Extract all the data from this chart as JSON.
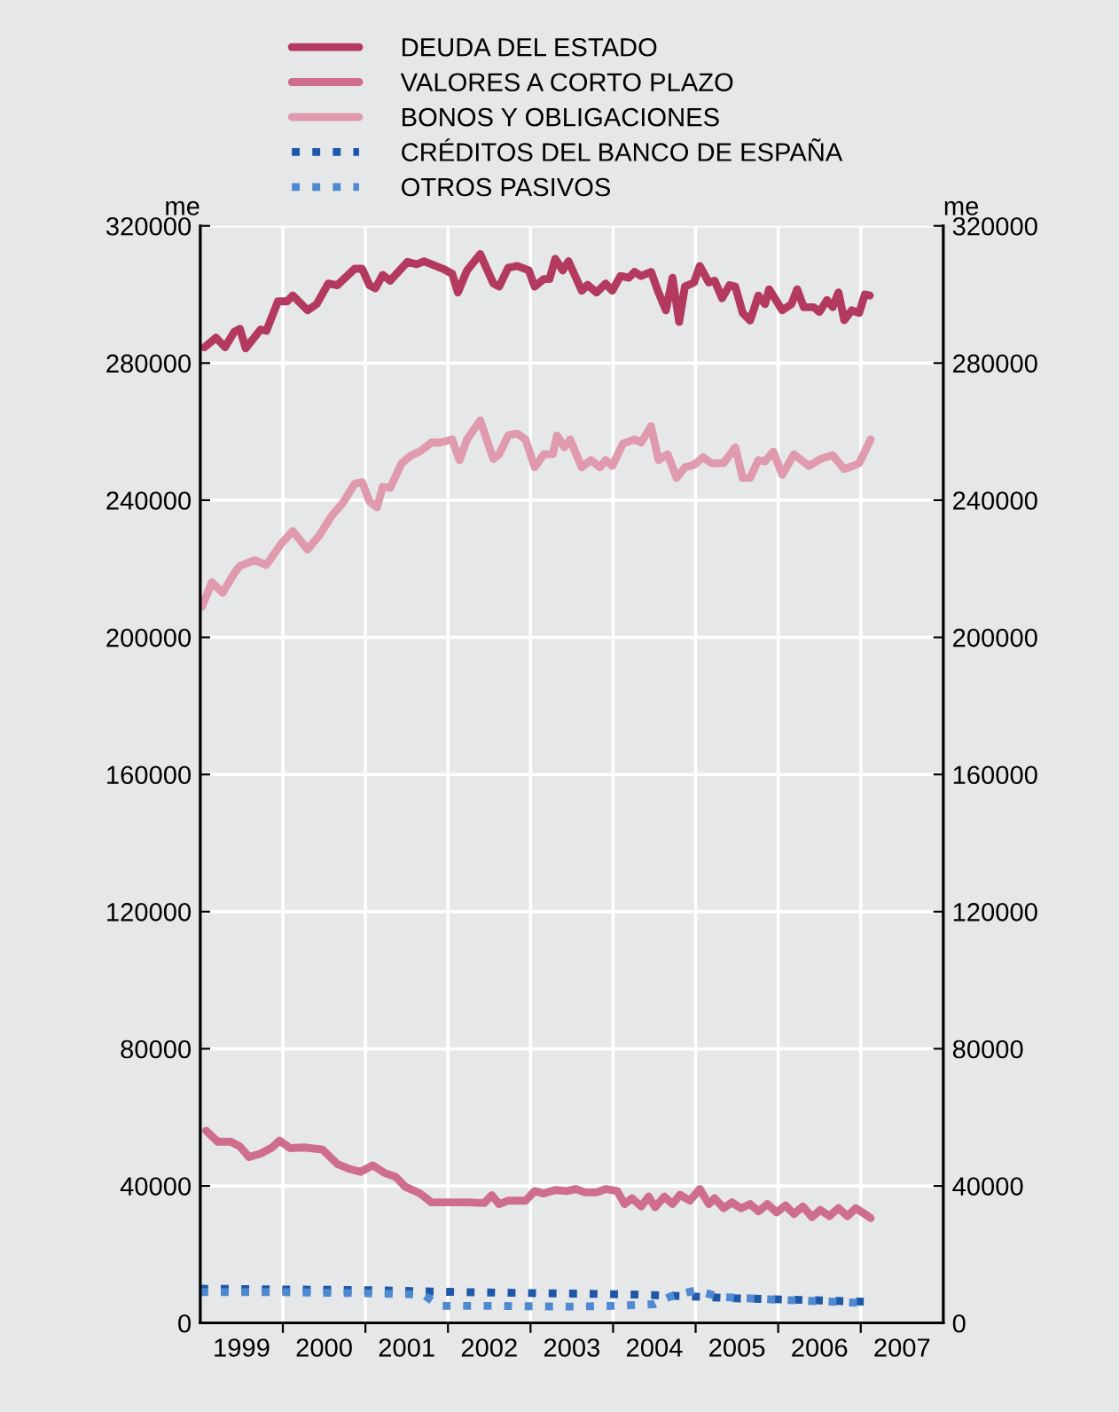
{
  "chart_data": {
    "type": "line",
    "ylabel": "me",
    "y2label": "me",
    "xlim": [
      1999,
      2008
    ],
    "xticks": [
      {
        "value": 1999.5,
        "label": "1999"
      },
      {
        "value": 2000,
        "label": null
      },
      {
        "value": 2000.5,
        "label": "2000"
      },
      {
        "value": 2001,
        "label": null
      },
      {
        "value": 2001.5,
        "label": "2001"
      },
      {
        "value": 2002,
        "label": null
      },
      {
        "value": 2002.5,
        "label": "2002"
      },
      {
        "value": 2003,
        "label": null
      },
      {
        "value": 2003.5,
        "label": "2003"
      },
      {
        "value": 2004,
        "label": null
      },
      {
        "value": 2004.5,
        "label": "2004"
      },
      {
        "value": 2005,
        "label": null
      },
      {
        "value": 2005.5,
        "label": "2005"
      },
      {
        "value": 2006,
        "label": null
      },
      {
        "value": 2006.5,
        "label": "2006"
      },
      {
        "value": 2007,
        "label": null
      },
      {
        "value": 2007.5,
        "label": "2007"
      }
    ],
    "ylim": [
      0,
      320000
    ],
    "yticks": [
      0,
      40000,
      80000,
      120000,
      160000,
      200000,
      240000,
      280000,
      320000
    ],
    "y2lim": [
      0,
      320000
    ],
    "y2ticks": [
      0,
      40000,
      80000,
      120000,
      160000,
      200000,
      240000,
      280000,
      320000
    ],
    "grid": true,
    "legend": "top",
    "series": [
      {
        "name": "DEUDA DEL ESTADO",
        "color": "#b33a5e",
        "line_style": "solid",
        "x": [
          1999.05,
          1999.19,
          1999.3,
          1999.41,
          1999.48,
          1999.55,
          1999.73,
          1999.8,
          1999.94,
          2000.05,
          2000.12,
          2000.3,
          2000.41,
          2000.55,
          2000.66,
          2000.87,
          2000.96,
          2001.05,
          2001.12,
          2001.21,
          2001.3,
          2001.51,
          2001.62,
          2001.71,
          2001.94,
          2002.05,
          2002.12,
          2002.23,
          2002.39,
          2002.55,
          2002.62,
          2002.73,
          2002.84,
          2002.98,
          2003.05,
          2003.16,
          2003.23,
          2003.3,
          2003.39,
          2003.46,
          2003.62,
          2003.69,
          2003.8,
          2003.91,
          2003.99,
          2004.09,
          2004.19,
          2004.26,
          2004.34,
          2004.46,
          2004.55,
          2004.64,
          2004.72,
          2004.8,
          2004.87,
          2004.98,
          2005.05,
          2005.16,
          2005.23,
          2005.32,
          2005.41,
          2005.48,
          2005.57,
          2005.66,
          2005.76,
          2005.84,
          2005.89,
          2006.05,
          2006.16,
          2006.23,
          2006.31,
          2006.43,
          2006.5,
          2006.59,
          2006.66,
          2006.73,
          2006.8,
          2006.89,
          2006.98,
          2007.05,
          2007.11
        ],
        "values": [
          284600,
          287400,
          284600,
          289100,
          290000,
          284300,
          289800,
          289400,
          298000,
          298000,
          299700,
          295400,
          297200,
          303200,
          302700,
          307500,
          307500,
          302700,
          301800,
          305700,
          304000,
          309500,
          308800,
          309700,
          307500,
          306100,
          300600,
          307000,
          311800,
          303200,
          302300,
          307800,
          308300,
          307000,
          302300,
          304500,
          304500,
          310400,
          307000,
          309700,
          301100,
          302800,
          300600,
          303200,
          301100,
          305400,
          304900,
          306600,
          305400,
          306600,
          300600,
          295400,
          304900,
          292000,
          302300,
          303500,
          308300,
          303500,
          304000,
          298900,
          302700,
          302300,
          294600,
          292400,
          299700,
          297200,
          301500,
          295400,
          297200,
          301500,
          296300,
          296300,
          294900,
          298400,
          296300,
          300600,
          292500,
          295400,
          294600,
          300000,
          299700
        ]
      },
      {
        "name": "VALORES A CORTO PLAZO",
        "color": "#cf6d8c",
        "line_style": "solid",
        "x": [
          1999.07,
          1999.21,
          1999.37,
          1999.48,
          1999.59,
          1999.73,
          1999.87,
          1999.96,
          2000.09,
          2000.26,
          2000.48,
          2000.66,
          2000.8,
          2000.94,
          2001.09,
          2001.23,
          2001.37,
          2001.48,
          2001.66,
          2001.8,
          2002.01,
          2002.23,
          2002.44,
          2002.53,
          2002.62,
          2002.73,
          2002.94,
          2003.05,
          2003.16,
          2003.3,
          2003.44,
          2003.55,
          2003.66,
          2003.8,
          2003.91,
          2004.05,
          2004.14,
          2004.23,
          2004.34,
          2004.43,
          2004.51,
          2004.62,
          2004.72,
          2004.81,
          2004.93,
          2005.05,
          2005.16,
          2005.23,
          2005.34,
          2005.44,
          2005.55,
          2005.66,
          2005.76,
          2005.87,
          2005.98,
          2006.09,
          2006.19,
          2006.3,
          2006.41,
          2006.51,
          2006.62,
          2006.73,
          2006.84,
          2006.94,
          2007.05,
          2007.12
        ],
        "values": [
          56100,
          52900,
          52900,
          51500,
          48400,
          49400,
          51200,
          53200,
          51000,
          51200,
          50600,
          46400,
          45000,
          44100,
          46000,
          43800,
          42600,
          39800,
          37800,
          35200,
          35200,
          35200,
          35000,
          37300,
          34700,
          35700,
          35700,
          38500,
          37800,
          38800,
          38500,
          39100,
          38100,
          38100,
          39100,
          38500,
          34700,
          36400,
          34000,
          36900,
          33800,
          36900,
          34700,
          37400,
          35700,
          39100,
          34700,
          36400,
          33500,
          35200,
          33500,
          34700,
          32600,
          34700,
          32300,
          34300,
          31800,
          34000,
          30900,
          33000,
          31200,
          33500,
          31200,
          33500,
          31800,
          30600
        ]
      },
      {
        "name": "BONOS Y OBLIGACIONES",
        "color": "#e09aae",
        "line_style": "solid",
        "x": [
          1999.02,
          1999.14,
          1999.27,
          1999.42,
          1999.48,
          1999.66,
          1999.8,
          1999.98,
          2000.12,
          2000.3,
          2000.44,
          2000.59,
          2000.73,
          2000.87,
          2000.96,
          2001.05,
          2001.14,
          2001.21,
          2001.3,
          2001.44,
          2001.55,
          2001.66,
          2001.8,
          2001.91,
          2002.05,
          2002.14,
          2002.23,
          2002.39,
          2002.55,
          2002.62,
          2002.73,
          2002.84,
          2002.94,
          2003.05,
          2003.16,
          2003.27,
          2003.32,
          2003.41,
          2003.48,
          2003.62,
          2003.73,
          2003.84,
          2003.91,
          2003.99,
          2004.12,
          2004.26,
          2004.34,
          2004.46,
          2004.55,
          2004.66,
          2004.77,
          2004.87,
          2004.98,
          2005.09,
          2005.19,
          2005.34,
          2005.48,
          2005.57,
          2005.66,
          2005.76,
          2005.84,
          2005.94,
          2006.05,
          2006.19,
          2006.37,
          2006.51,
          2006.66,
          2006.8,
          2006.91,
          2006.98,
          2007.12
        ],
        "values": [
          208900,
          216100,
          213000,
          219000,
          220800,
          222500,
          221100,
          227300,
          231000,
          225600,
          229700,
          235400,
          239300,
          244800,
          245300,
          239600,
          237900,
          243900,
          243600,
          250800,
          253000,
          254200,
          256800,
          256800,
          257700,
          251700,
          257700,
          263300,
          252000,
          253400,
          258900,
          259400,
          257700,
          249600,
          253400,
          253400,
          258900,
          255400,
          257700,
          249600,
          251700,
          249600,
          251700,
          250000,
          256500,
          257700,
          256800,
          261600,
          251700,
          253400,
          246500,
          249600,
          250300,
          252500,
          250800,
          250800,
          255400,
          246500,
          246500,
          251700,
          251300,
          254200,
          247400,
          253400,
          250000,
          252000,
          253100,
          249100,
          250000,
          250800,
          257700
        ]
      },
      {
        "name": "CRÉDITOS DEL BANCO DE ESPAÑA",
        "color": "#1f57a8",
        "line_style": "dotted",
        "x": [
          1999.0,
          2000.0,
          2001.0,
          2001.8,
          2002.5,
          2003.5,
          2004.3,
          2004.9,
          2005.5,
          2006.2,
          2007.1
        ],
        "values": [
          10000,
          9800,
          9600,
          9200,
          8900,
          8600,
          8300,
          7800,
          7200,
          6800,
          6200
        ]
      },
      {
        "name": "OTROS PASIVOS",
        "color": "#4f8ad0",
        "line_style": "dotted",
        "x": [
          1999.0,
          2000.0,
          2001.0,
          2001.7,
          2001.9,
          2002.5,
          2003.5,
          2004.0,
          2004.5,
          2004.7,
          2005.0,
          2005.3,
          2006.0,
          2007.1
        ],
        "values": [
          9000,
          9000,
          8700,
          8300,
          5000,
          5000,
          4800,
          5000,
          5500,
          7800,
          9500,
          7600,
          6800,
          5800
        ]
      }
    ]
  }
}
